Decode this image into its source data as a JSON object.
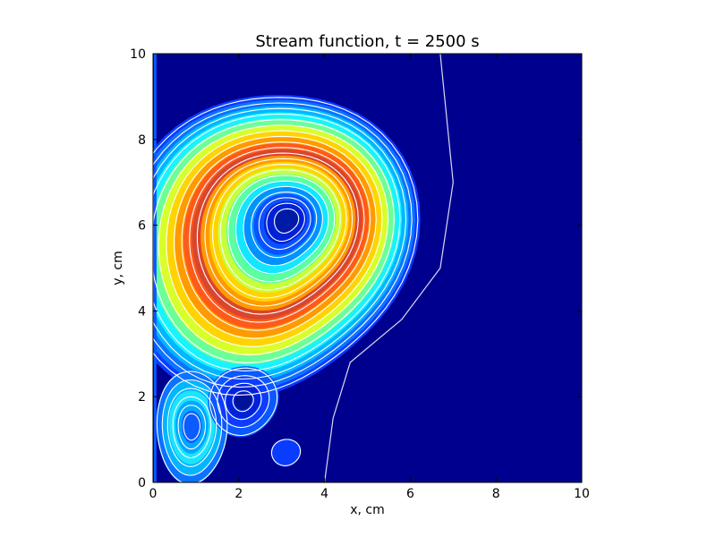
{
  "chart_data": {
    "type": "heatmap",
    "subtype": "filled-contour with line contours",
    "title": "Stream function, t = 2500 s",
    "xlabel": "x, cm",
    "ylabel": "y, cm",
    "xlim": [
      0,
      10
    ],
    "ylim": [
      0,
      10
    ],
    "x_ticks": [
      0,
      2,
      4,
      6,
      8,
      10
    ],
    "y_ticks": [
      0,
      2,
      4,
      6,
      8,
      10
    ],
    "x_tick_labels": [
      "0",
      "2",
      "4",
      "6",
      "8",
      "10"
    ],
    "y_tick_labels": [
      "0",
      "2",
      "4",
      "6",
      "8",
      "10"
    ],
    "colormap": "jet",
    "contour_line_color": "#ffffff",
    "background_color": "#00008f",
    "features": [
      {
        "name": "main-vortex",
        "center": [
          2.6,
          5.6
        ],
        "extent_x": [
          0.1,
          6.8
        ],
        "extent_y": [
          2.5,
          9.9
        ],
        "level": "peak ring"
      },
      {
        "name": "lower-vortex",
        "center": [
          2.1,
          1.9
        ],
        "extent_x": [
          1.7,
          3.3
        ],
        "extent_y": [
          0.9,
          2.6
        ],
        "level": "low"
      },
      {
        "name": "small-eddy",
        "center": [
          3.1,
          0.7
        ],
        "extent_x": [
          2.8,
          3.5
        ],
        "extent_y": [
          0.35,
          1.0
        ],
        "level": "low"
      },
      {
        "name": "left-cell",
        "center": [
          0.9,
          1.3
        ],
        "extent_x": [
          0.2,
          1.8
        ],
        "extent_y": [
          0.4,
          3.2
        ],
        "level": "medium"
      }
    ],
    "separatrix": [
      [
        4.0,
        0.0
      ],
      [
        4.2,
        1.5
      ],
      [
        4.6,
        2.8
      ],
      [
        5.8,
        3.8
      ],
      [
        6.7,
        5.0
      ],
      [
        7.0,
        7.0
      ],
      [
        6.8,
        9.0
      ],
      [
        6.7,
        10.0
      ]
    ]
  }
}
